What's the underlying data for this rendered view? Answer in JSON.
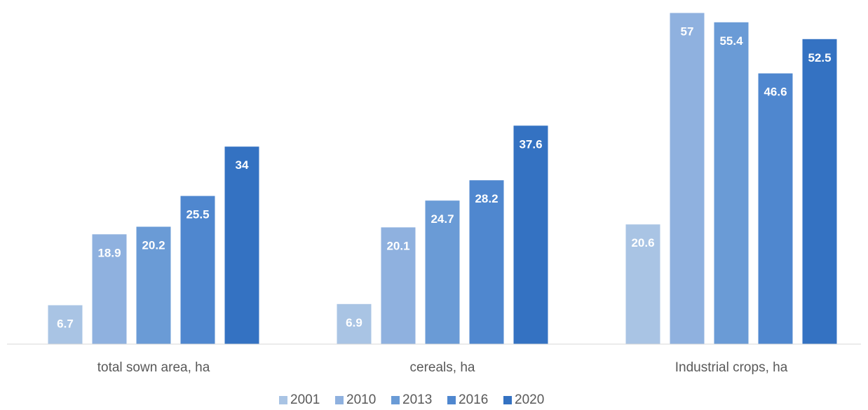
{
  "chart_data": {
    "type": "bar",
    "categories": [
      "total sown area, ha",
      "cereals, ha",
      "Industrial crops, ha"
    ],
    "series": [
      {
        "name": "2001",
        "color": "#a9c4e4",
        "values": [
          6.7,
          6.9,
          20.6
        ]
      },
      {
        "name": "2010",
        "color": "#8fb1df",
        "values": [
          18.9,
          20.1,
          57
        ]
      },
      {
        "name": "2013",
        "color": "#6a9bd6",
        "values": [
          20.2,
          24.7,
          55.4
        ]
      },
      {
        "name": "2016",
        "color": "#4f87cf",
        "values": [
          25.5,
          28.2,
          46.6
        ]
      },
      {
        "name": "2020",
        "color": "#3472c2",
        "values": [
          34,
          37.6,
          52.5
        ]
      }
    ],
    "title": "",
    "xlabel": "",
    "ylabel": "",
    "ylim": [
      0,
      57.3
    ],
    "grid": false,
    "legend_position": "bottom",
    "data_labels": true
  }
}
